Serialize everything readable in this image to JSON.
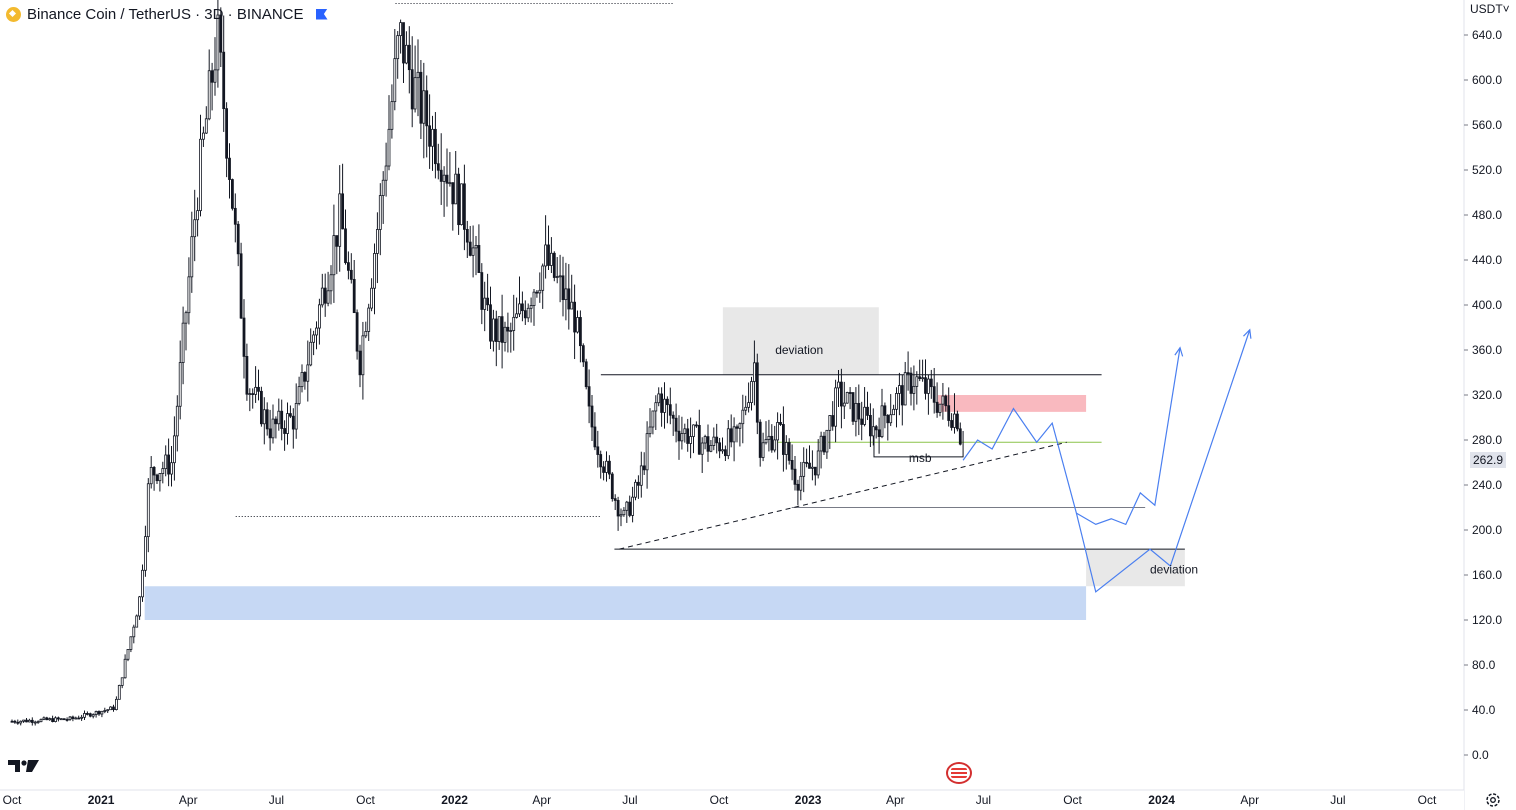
{
  "header": {
    "symbol_title": "Binance Coin / TetherUS · 3D · BINANCE",
    "currency_label": "USDT",
    "currency_caret": "˅"
  },
  "price_axis": {
    "ticks": [
      "640.0",
      "600.0",
      "560.0",
      "520.0",
      "480.0",
      "440.0",
      "400.0",
      "360.0",
      "320.0",
      "280.0",
      "240.0",
      "200.0",
      "160.0",
      "120.0",
      "80.0",
      "40.0",
      "0.0"
    ],
    "last_price": "262.9"
  },
  "time_axis": {
    "ticks": [
      "Oct",
      "2021",
      "Apr",
      "Jul",
      "Oct",
      "2022",
      "Apr",
      "Jul",
      "Oct",
      "2023",
      "Apr",
      "Jul",
      "Oct",
      "2024",
      "Apr",
      "Jul",
      "Oct"
    ],
    "bold_ticks": [
      "2021",
      "2022",
      "2023",
      "2024"
    ]
  },
  "annotations": {
    "deviation_top": "deviation",
    "deviation_bottom": "deviation",
    "msb": "msb"
  },
  "colors": {
    "candle": "#131722",
    "deviation_box": "#d1d4dc",
    "deviation_text": "#9c27b0",
    "supply_zone": "#f7a1a9",
    "demand_zone": "#b3cbf0",
    "projection": "#4a7ff0",
    "midline": "#8bc34a",
    "msb_text": "#1b5e20",
    "axis_bg": "#ffffff"
  },
  "icons": {
    "logo": "tradingview-logo-icon",
    "settings": "gear-icon",
    "flag": "us-flag-icon",
    "coin": "bnb-coin-icon"
  },
  "chart_data": {
    "type": "candlestick",
    "symbol": "BNBUSDT",
    "interval": "3D",
    "ylim": [
      0,
      640
    ],
    "x_range": [
      "2020-10",
      "2024-10"
    ],
    "price_path": [
      [
        "2020-10-01",
        30
      ],
      [
        "2020-12-01",
        32
      ],
      [
        "2021-01-15",
        42
      ],
      [
        "2021-02-10",
        140
      ],
      [
        "2021-02-20",
        250
      ],
      [
        "2021-03-15",
        260
      ],
      [
        "2021-04-10",
        500
      ],
      [
        "2021-05-01",
        640
      ],
      [
        "2021-05-15",
        510
      ],
      [
        "2021-06-01",
        330
      ],
      [
        "2021-06-25",
        290
      ],
      [
        "2021-07-20",
        300
      ],
      [
        "2021-08-15",
        400
      ],
      [
        "2021-09-05",
        480
      ],
      [
        "2021-09-25",
        350
      ],
      [
        "2021-10-15",
        480
      ],
      [
        "2021-11-05",
        640
      ],
      [
        "2021-11-25",
        580
      ],
      [
        "2021-12-20",
        530
      ],
      [
        "2022-01-15",
        470
      ],
      [
        "2022-02-05",
        380
      ],
      [
        "2022-02-25",
        370
      ],
      [
        "2022-03-20",
        410
      ],
      [
        "2022-04-05",
        440
      ],
      [
        "2022-05-05",
        390
      ],
      [
        "2022-05-20",
        300
      ],
      [
        "2022-06-15",
        230
      ],
      [
        "2022-06-25",
        210
      ],
      [
        "2022-07-10",
        240
      ],
      [
        "2022-07-30",
        320
      ],
      [
        "2022-08-20",
        290
      ],
      [
        "2022-09-20",
        275
      ],
      [
        "2022-10-20",
        280
      ],
      [
        "2022-11-07",
        350
      ],
      [
        "2022-11-12",
        270
      ],
      [
        "2022-12-01",
        290
      ],
      [
        "2022-12-20",
        245
      ],
      [
        "2023-01-10",
        260
      ],
      [
        "2023-02-01",
        320
      ],
      [
        "2023-03-10",
        290
      ],
      [
        "2023-04-01",
        315
      ],
      [
        "2023-04-20",
        335
      ],
      [
        "2023-05-20",
        310
      ],
      [
        "2023-06-05",
        300
      ],
      [
        "2023-06-10",
        262.9
      ]
    ],
    "horizontal_levels": [
      {
        "price": 338,
        "from": "2022-06-01",
        "to": "2023-10-31"
      },
      {
        "price": 278,
        "from": "2022-12-01",
        "to": "2023-10-31"
      },
      {
        "price": 220,
        "from": "2022-12-15",
        "to": "2023-12-15"
      },
      {
        "price": 183,
        "from": "2022-06-15",
        "to": "2024-01-25"
      },
      {
        "price": 212,
        "from": "2021-05-20",
        "to": "2022-06-01"
      },
      {
        "price": 668,
        "from": "2021-11-01",
        "to": "2022-08-15"
      }
    ],
    "zones": [
      {
        "name": "deviation",
        "from": "2022-10-05",
        "to": "2023-03-15",
        "low": 338,
        "high": 398
      },
      {
        "name": "supply",
        "from": "2023-05-15",
        "to": "2023-10-15",
        "low": 305,
        "high": 320
      },
      {
        "name": "demand",
        "from": "2021-02-15",
        "to": "2023-10-15",
        "low": 120,
        "high": 150
      },
      {
        "name": "deviation",
        "from": "2023-10-15",
        "to": "2024-01-25",
        "low": 150,
        "high": 183
      }
    ],
    "projection_path": [
      [
        "2023-06-10",
        262
      ],
      [
        "2023-06-25",
        280
      ],
      [
        "2023-07-10",
        272
      ],
      [
        "2023-08-01",
        308
      ],
      [
        "2023-08-25",
        278
      ],
      [
        "2023-09-10",
        295
      ],
      [
        "2023-10-05",
        215
      ],
      [
        "2023-10-25",
        205
      ],
      [
        "2023-11-10",
        210
      ],
      [
        "2023-11-25",
        205
      ],
      [
        "2023-12-10",
        233
      ],
      [
        "2023-12-25",
        222
      ],
      [
        "2024-01-20",
        362
      ]
    ],
    "projection_path_2": [
      [
        "2023-10-05",
        215
      ],
      [
        "2023-10-25",
        145
      ],
      [
        "2023-12-20",
        183
      ],
      [
        "2024-01-10",
        168
      ],
      [
        "2024-04-01",
        378
      ]
    ]
  }
}
